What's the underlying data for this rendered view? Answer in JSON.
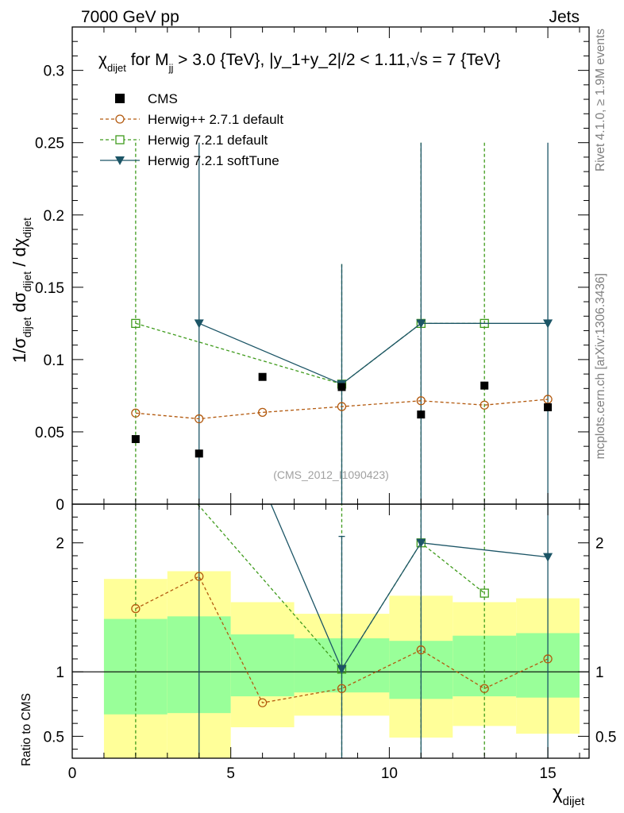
{
  "header": {
    "left": "7000 GeV pp",
    "right": "Jets"
  },
  "side_labels": {
    "rivet": "Rivet 4.1.0, ≥ 1.9M events",
    "mcplots": "mcplots.cern.ch [arXiv:1306.3436]"
  },
  "chart_data": {
    "type": "scatter",
    "title": "χ_dijet for M_jj > 3.0 {TeV}, |y_1+y_2|/2 < 1.11, √s = 7 {TeV}",
    "title_parts": {
      "chi": "χ",
      "dijet": "dijet",
      "for_m": " for M",
      "jj": "jj",
      "mid": " > 3.0 {TeV}, |y_1+y_2|/2 < 1.11,",
      "sqrt": "√",
      "end": "s = 7 {TeV}"
    },
    "watermark": "(CMS_2012_I1090423)",
    "ylabel": "1/σ_dijet dσ_dijet / dχ_dijet",
    "ylabel_parts": {
      "one_over_sigma": "1/σ",
      "dijet": "dijet",
      "dsigma": "dσ",
      "slash_dchi": " / dχ"
    },
    "xlabel": "χ_dijet",
    "xlabel_parts": {
      "chi": "χ",
      "sub": "dijet"
    },
    "ratio_ylabel": "Ratio to CMS",
    "xlim": [
      0,
      16.3
    ],
    "ylim": [
      0,
      0.33
    ],
    "ratio_ylim": [
      0.33,
      2.3
    ],
    "x_ticks": [
      0,
      5,
      10,
      15
    ],
    "x_tick_labels": [
      "0",
      "5",
      "10",
      "15"
    ],
    "y_ticks": [
      0,
      0.05,
      0.1,
      0.15,
      0.2,
      0.25,
      0.3
    ],
    "y_tick_labels": [
      "0",
      "0.05",
      "0.1",
      "0.15",
      "0.2",
      "0.25",
      "0.3"
    ],
    "ratio_ticks": [
      0.5,
      1,
      2
    ],
    "ratio_tick_labels": [
      "0.5",
      "1",
      "2"
    ],
    "legend": [
      "CMS",
      "Herwig++ 2.7.1 default",
      "Herwig 7.2.1 default",
      "Herwig 7.2.1 softTune"
    ],
    "colors": {
      "cms": "#000000",
      "herwigpp": "#b35a0f",
      "h721": "#3f9b1c",
      "soft": "#1c5566",
      "band_inner": "#99ff99",
      "band_outer": "#ffff99"
    },
    "bins": [
      [
        1,
        3
      ],
      [
        3,
        5
      ],
      [
        5,
        7
      ],
      [
        7,
        10
      ],
      [
        10,
        12
      ],
      [
        12,
        14
      ],
      [
        14,
        16
      ]
    ],
    "band_inner": [
      [
        0.67,
        1.41
      ],
      [
        0.68,
        1.43
      ],
      [
        0.81,
        1.29
      ],
      [
        0.84,
        1.26
      ],
      [
        0.79,
        1.24
      ],
      [
        0.81,
        1.28
      ],
      [
        0.8,
        1.3
      ]
    ],
    "band_outer": [
      [
        0.33,
        1.72
      ],
      [
        0.33,
        1.78
      ],
      [
        0.57,
        1.54
      ],
      [
        0.66,
        1.45
      ],
      [
        0.49,
        1.59
      ],
      [
        0.58,
        1.54
      ],
      [
        0.52,
        1.57
      ]
    ],
    "series": [
      {
        "name": "CMS",
        "x": [
          2,
          4,
          6,
          8.5,
          11,
          13,
          15
        ],
        "y": [
          0.045,
          0.035,
          0.088,
          0.081,
          0.062,
          0.082,
          0.067
        ]
      },
      {
        "name": "Herwig++ 2.7.1 default",
        "x": [
          2,
          4,
          6,
          8.5,
          11,
          13,
          15
        ],
        "y": [
          0.063,
          0.059,
          0.0635,
          0.0675,
          0.0715,
          0.0685,
          0.0725
        ],
        "err": [
          0,
          0,
          0,
          0,
          0,
          0,
          0
        ],
        "ratio": [
          1.49,
          1.74,
          0.76,
          0.87,
          1.17,
          0.87,
          1.1
        ]
      },
      {
        "name": "Herwig 7.2.1 default",
        "x": [
          2,
          8.5,
          11,
          13
        ],
        "y": [
          0.125,
          0.083,
          0.125,
          0.125
        ],
        "err": [
          0.125,
          0.083,
          0.125,
          0.125
        ],
        "ratio": [
          2.85,
          1.02,
          2.0,
          1.61
        ]
      },
      {
        "name": "Herwig 7.2.1 softTune",
        "x": [
          4,
          8.5,
          11,
          15
        ],
        "y": [
          0.125,
          0.083,
          0.125,
          0.125
        ],
        "err": [
          0.125,
          0.083,
          0.125,
          0.125
        ],
        "ratio": [
          3.6,
          1.02,
          2.0,
          1.89
        ]
      }
    ]
  }
}
